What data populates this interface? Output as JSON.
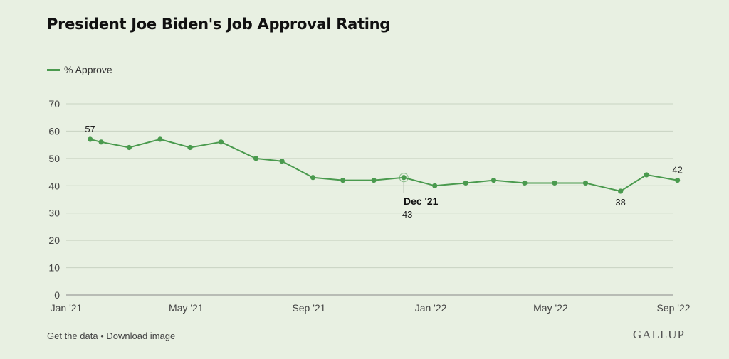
{
  "title": "President Joe Biden's Job Approval Rating",
  "legend": {
    "label": "% Approve",
    "color": "#4a9a4e"
  },
  "footer": {
    "get_data": "Get the data",
    "separator": "•",
    "download": "Download image"
  },
  "brand": "GALLUP",
  "chart_data": {
    "type": "line",
    "title": "President Joe Biden's Job Approval Rating",
    "xlabel": "",
    "ylabel": "",
    "ylim": [
      0,
      70
    ],
    "yticks": [
      0,
      10,
      20,
      30,
      40,
      50,
      60,
      70
    ],
    "xlim": [
      "2021-01",
      "2022-09"
    ],
    "xtick_labels": [
      "Jan '21",
      "May '21",
      "Sep '21",
      "Jan '22",
      "May '22",
      "Sep '22"
    ],
    "xtick_dates": [
      "2021-01",
      "2021-05",
      "2021-09",
      "2022-01",
      "2022-05",
      "2022-09"
    ],
    "grid": true,
    "legend_position": "top-left",
    "series": [
      {
        "name": "% Approve",
        "color": "#4a9a4e",
        "points": [
          {
            "x": "2021-01-25",
            "y": 57
          },
          {
            "x": "2021-02-05",
            "y": 56
          },
          {
            "x": "2021-03-05",
            "y": 54
          },
          {
            "x": "2021-04-05",
            "y": 57
          },
          {
            "x": "2021-05-05",
            "y": 54
          },
          {
            "x": "2021-06-05",
            "y": 56
          },
          {
            "x": "2021-07-10",
            "y": 50
          },
          {
            "x": "2021-08-05",
            "y": 49
          },
          {
            "x": "2021-09-05",
            "y": 43
          },
          {
            "x": "2021-10-05",
            "y": 42
          },
          {
            "x": "2021-11-05",
            "y": 42
          },
          {
            "x": "2021-12-05",
            "y": 43
          },
          {
            "x": "2022-01-05",
            "y": 40
          },
          {
            "x": "2022-02-05",
            "y": 41
          },
          {
            "x": "2022-03-05",
            "y": 42
          },
          {
            "x": "2022-04-05",
            "y": 41
          },
          {
            "x": "2022-05-05",
            "y": 41
          },
          {
            "x": "2022-06-05",
            "y": 41
          },
          {
            "x": "2022-07-10",
            "y": 38
          },
          {
            "x": "2022-08-05",
            "y": 44
          },
          {
            "x": "2022-09-05",
            "y": 42
          }
        ]
      }
    ],
    "annotations": [
      {
        "x": "2021-01-25",
        "y": 57,
        "label": "57",
        "position": "above"
      },
      {
        "x": "2021-12-05",
        "y": 43,
        "label": "43",
        "title": "Dec '21",
        "position": "below",
        "highlighted": true
      },
      {
        "x": "2022-07-10",
        "y": 38,
        "label": "38",
        "position": "below"
      },
      {
        "x": "2022-09-05",
        "y": 42,
        "label": "42",
        "position": "above"
      }
    ]
  }
}
